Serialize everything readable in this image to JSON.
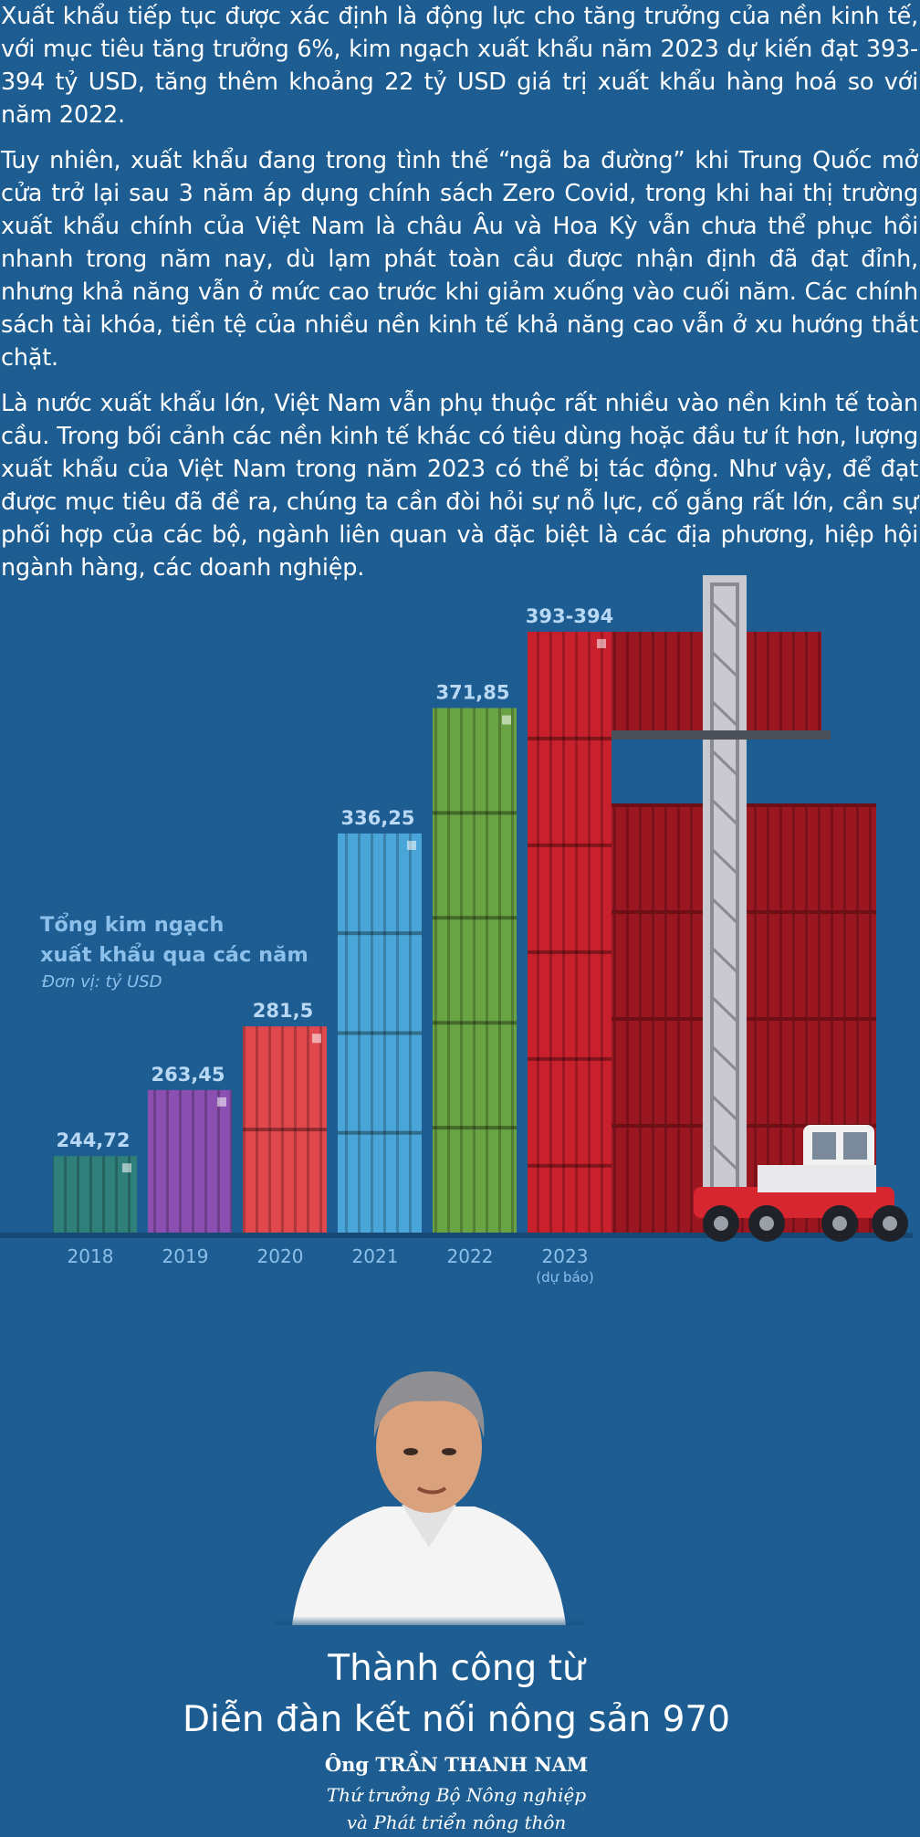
{
  "article": {
    "paragraphs": [
      "Xuất khẩu tiếp tục được xác định là động lực cho tăng trưởng của nền kinh tế, với mục tiêu tăng trưởng 6%, kim ngạch xuất khẩu năm 2023 dự kiến đạt 393-394 tỷ USD, tăng thêm khoảng 22 tỷ USD giá trị xuất khẩu hàng hoá so với năm 2022.",
      "Tuy nhiên, xuất khẩu đang trong tình thế “ngã ba đường” khi Trung Quốc mở cửa trở lại sau 3 năm áp dụng chính sách Zero Covid, trong khi hai thị trường xuất khẩu chính của Việt Nam là châu Âu và Hoa Kỳ vẫn chưa thể phục hồi nhanh trong năm nay, dù lạm phát toàn cầu được nhận định đã đạt đỉnh, nhưng khả năng vẫn ở mức cao trước khi giảm xuống vào cuối năm. Các chính sách tài khóa, tiền tệ của nhiều nền kinh tế khả năng cao vẫn ở xu hướng thắt chặt.",
      "Là nước xuất khẩu lớn, Việt Nam vẫn phụ thuộc rất nhiều vào nền kinh tế toàn cầu. Trong bối cảnh các nền kinh tế khác có tiêu dùng hoặc đầu tư ít hơn, lượng xuất khẩu của Việt Nam trong năm 2023 có thể bị tác động. Như vậy, để đạt được mục tiêu đã đề ra, chúng ta cần  đòi hỏi sự nỗ lực, cố gắng rất lớn, cần sự phối hợp của các bộ, ngành liên quan và đặc biệt là các địa phương, hiệp hội ngành hàng, các doanh nghiệp."
    ]
  },
  "chart_data": {
    "type": "bar",
    "title_line1": "Tổng kim ngạch",
    "title_line2": "xuất khẩu qua các năm",
    "unit": "Đơn vị: tỷ USD",
    "categories": [
      "2018",
      "2019",
      "2020",
      "2021",
      "2022",
      "2023"
    ],
    "category_notes": [
      "",
      "",
      "",
      "",
      "",
      "(dự báo)"
    ],
    "values": [
      244.72,
      263.45,
      281.5,
      336.25,
      371.85,
      393.5
    ],
    "value_labels": [
      "244,72",
      "263,45",
      "281,5",
      "336,25",
      "371,85",
      "393-394"
    ],
    "colors": [
      "#2f7f7a",
      "#8a4fb0",
      "#e0484d",
      "#4aa6d8",
      "#6aa343",
      "#c8202c"
    ],
    "background": "#1d5d92"
  },
  "feature": {
    "title_line1": "Thành công từ",
    "title_line2": "Diễn đàn kết nối nông sản 970",
    "name": "Ông TRẦN THANH NAM",
    "role_line1": "Thứ trưởng Bộ Nông nghiệp",
    "role_line2": "và Phát triển nông thôn"
  }
}
